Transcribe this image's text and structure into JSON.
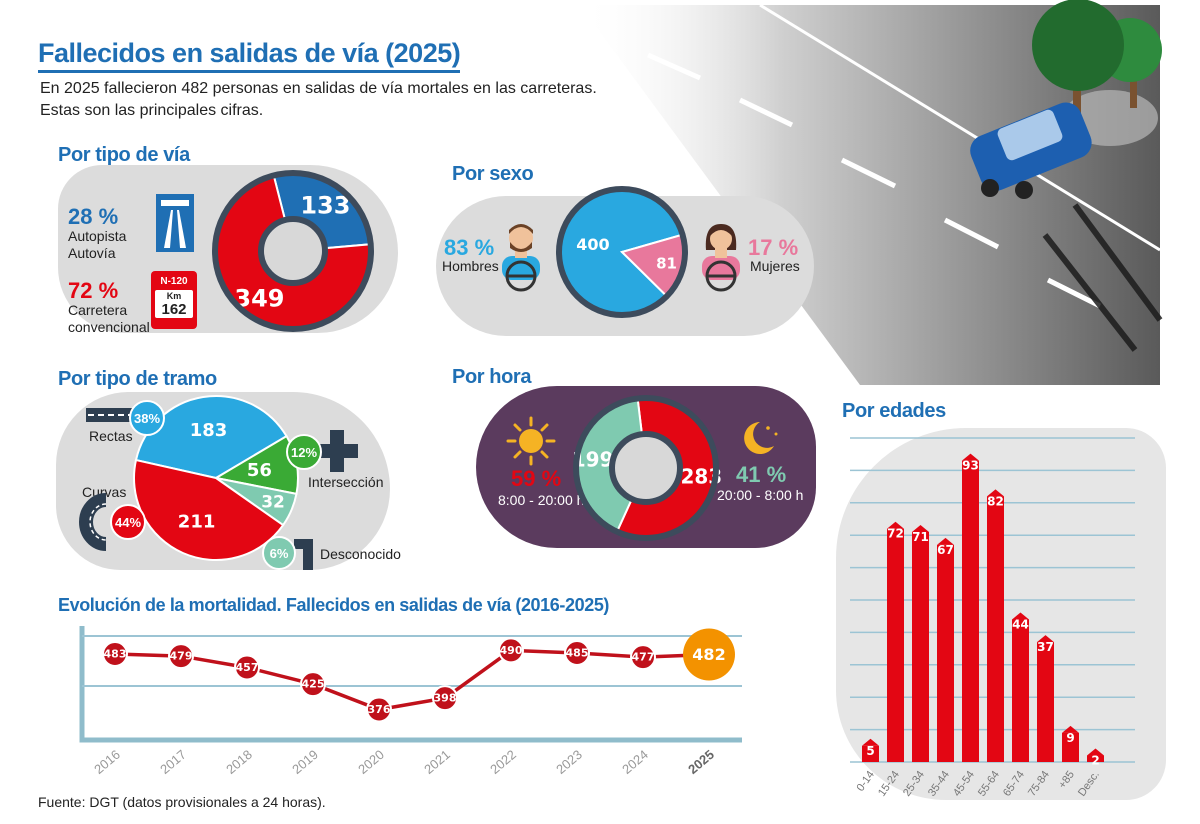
{
  "title": "Fallecidos en salidas de vía (2025)",
  "subtitle": "En 2025 fallecieron 482 personas en salidas de vía mortales en las carreteras. Estas son las principales cifras.",
  "source": "Fuente: DGT (datos provisionales a 24 horas).",
  "colors": {
    "blue": "#1f6fb4",
    "red": "#e30613",
    "light_blue": "#29a8e0",
    "pink": "#e8789c",
    "green": "#3aaa35",
    "teal": "#7fcab0",
    "orange": "#f39200",
    "purple": "#5b3b5e"
  },
  "icons": {
    "autopista": "motorway-sign-icon",
    "convencional": "road-km-sign-icon",
    "hombre": "male-driver-icon",
    "mujer": "female-driver-icon",
    "sol": "sun-icon",
    "luna": "moon-icon"
  },
  "tipo_via": {
    "heading": "Por tipo de vía",
    "autopista_pct": "28 %",
    "autopista_label_1": "Autopista",
    "autopista_label_2": "Autovía",
    "convencional_pct": "72 %",
    "convencional_label_1": "Carretera",
    "convencional_label_2": "convencional",
    "sign_road": "N-120",
    "sign_km": "Km",
    "sign_num": "162"
  },
  "sexo": {
    "heading": "Por sexo",
    "hombres_pct": "83 %",
    "hombres_label": "Hombres",
    "mujeres_pct": "17 %",
    "mujeres_label": "Mujeres"
  },
  "tramo": {
    "heading": "Por tipo de tramo",
    "rectas_label": "Rectas",
    "rectas_pct": "38%",
    "curvas_label": "Curvas",
    "curvas_pct": "44%",
    "interseccion_label": "Intersección",
    "interseccion_pct": "12%",
    "desconocido_label": "Desconocido",
    "desconocido_pct": "6%"
  },
  "hora": {
    "heading": "Por hora",
    "dia_pct": "59 %",
    "dia_label": "8:00 - 20:00 h",
    "noche_pct": "41 %",
    "noche_label": "20:00 - 8:00 h"
  },
  "edades": {
    "heading": "Por edades"
  },
  "evolucion": {
    "heading": "Evolución de la mortalidad. Fallecidos en salidas de vía (2016-2025)"
  },
  "chart_data": [
    {
      "type": "pie",
      "title": "Por tipo de vía",
      "categories": [
        "Autopista / Autovía",
        "Carretera convencional"
      ],
      "values": [
        133,
        349
      ]
    },
    {
      "type": "pie",
      "title": "Por sexo",
      "categories": [
        "Hombres",
        "Mujeres"
      ],
      "values": [
        400,
        81
      ]
    },
    {
      "type": "pie",
      "title": "Por tipo de tramo",
      "categories": [
        "Rectas",
        "Intersección",
        "Desconocido",
        "Curvas"
      ],
      "values": [
        183,
        56,
        32,
        211
      ]
    },
    {
      "type": "pie",
      "title": "Por hora",
      "categories": [
        "8:00 - 20:00 h",
        "20:00 - 8:00 h"
      ],
      "values": [
        283,
        199
      ]
    },
    {
      "type": "bar",
      "title": "Por edades",
      "categories": [
        "0-14",
        "15-24",
        "25-34",
        "35-44",
        "45-54",
        "55-64",
        "65-74",
        "75-84",
        "+85",
        "Desc."
      ],
      "values": [
        5,
        72,
        71,
        67,
        93,
        82,
        44,
        37,
        9,
        2
      ]
    },
    {
      "type": "line",
      "title": "Evolución de la mortalidad. Fallecidos en salidas de vía (2016-2025)",
      "x": [
        "2016",
        "2017",
        "2018",
        "2019",
        "2020",
        "2021",
        "2022",
        "2023",
        "2024",
        "2025"
      ],
      "values": [
        483,
        479,
        457,
        425,
        376,
        398,
        490,
        485,
        477,
        482
      ]
    }
  ]
}
